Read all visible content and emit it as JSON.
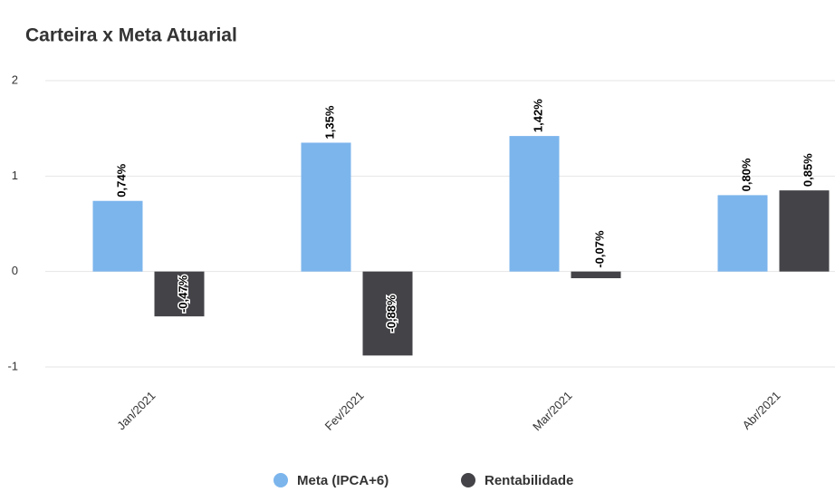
{
  "chart_data": {
    "type": "bar",
    "title": "Carteira x Meta Atuarial",
    "categories": [
      "Jan/2021",
      "Fev/2021",
      "Mar/2021",
      "Abr/2021"
    ],
    "series": [
      {
        "name": "Meta (IPCA+6)",
        "color": "#7cb5ec",
        "values": [
          0.74,
          1.35,
          1.42,
          0.8
        ],
        "value_labels": [
          "0,74%",
          "1,35%",
          "1,42%",
          "0,80%"
        ]
      },
      {
        "name": "Rentabilidade",
        "color": "#434348",
        "values": [
          -0.47,
          -0.88,
          -0.07,
          0.85
        ],
        "value_labels": [
          "-0,47%",
          "-0,88%",
          "-0,07%",
          "0,85%"
        ]
      }
    ],
    "ylim": [
      -1,
      2
    ],
    "yticks": [
      -1,
      0,
      1,
      2
    ],
    "grid": true,
    "legend": "bottom"
  }
}
